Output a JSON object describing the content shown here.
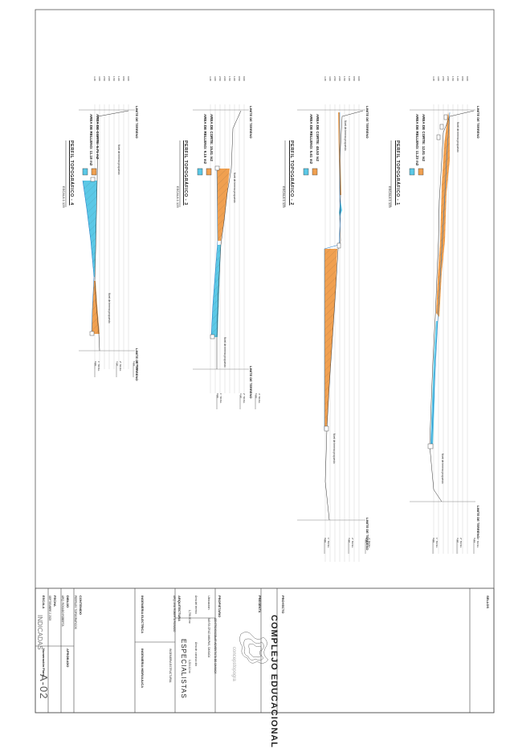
{
  "profiles": [
    {
      "id": "profile-1",
      "title": "PERFIL TOPOGRÁFICO - 1",
      "scale": "ESCALA 1:125",
      "cut_area": "AREA DE CORTE: 12.81 m2",
      "fill_area": "AREA DE RELLENO: 11.23 m2",
      "boundary_start": "LIMITE DE TERRENO",
      "boundary_end": "LIMITE DE TERRENO",
      "grade_label_start": "Nivel de terreno propuesto",
      "grade_label_end": "Nivel de terreno propuesto",
      "elevations": [
        "3.48",
        "3.00",
        "2.50",
        "2.00",
        "1.50",
        "1.00",
        "0.50",
        "0.00"
      ],
      "level_labels": [
        "1° NIVEL\n0.00",
        "2° NIVEL\n3.12",
        "3° NIVEL\n6.24"
      ]
    },
    {
      "id": "profile-2",
      "title": "PERFIL TOPOGRÁFICO - 2",
      "scale": "ESCALA 1:125",
      "cut_area": "AREA DE CORTE: 48.53 m2",
      "fill_area": "AREA DE RELLENO: 5.61 m2",
      "boundary_start": "LIMITE DE TERRENO",
      "boundary_end": "LIMITE DE TERRENO",
      "grade_label_start": "Nivel de terreno propuesto",
      "grade_label_end": "Nivel de terreno propuesto",
      "elevations": [
        "3.48",
        "3.00",
        "2.50",
        "2.00",
        "1.50",
        "1.00",
        "0.50",
        "0.00"
      ],
      "level_labels": [
        "1° NIVEL\n0.00",
        "2° NIVEL\n3.12",
        "3° NIVEL\n6.24"
      ]
    },
    {
      "id": "profile-3",
      "title": "PERFIL TOPOGRÁFICO - 3",
      "scale": "ESCALA 1:125",
      "cut_area": "AREA DE CORTE: 15.81 m2",
      "fill_area": "AREA DE RELLENO: 9.15 m2",
      "boundary_start": "LIMITE DE TERRENO",
      "boundary_end": "LIMITE DE TERRENO",
      "grade_label_start": "Nivel de terreno propuesto",
      "grade_label_end": "Nivel de terreno propuesto",
      "elevations": [
        "3.48",
        "3.00",
        "2.50",
        "2.00",
        "1.50",
        "1.00",
        "0.50",
        "0.00"
      ],
      "level_labels": [
        "1° NIVEL\n0.00",
        "2° NIVEL\n3.12",
        "3° NIVEL\n6.24"
      ]
    },
    {
      "id": "profile-4",
      "title": "PERFIL TOPOGRÁFICO - 4",
      "scale": "ESCALA 1:125",
      "cut_area": "AREA DE CORTE: 5.71 m2",
      "fill_area": "AREA DE RELLENO: 11.18 m2",
      "boundary_start": "LIMITE DE TERRENO",
      "boundary_end": "LIMITE DE TERRENO",
      "grade_label_start": "Nivel de terreno propuesto",
      "grade_label_end": "Nivel de terreno propuesto",
      "elevations": [
        "3.48",
        "3.00",
        "2.50",
        "2.00",
        "1.50",
        "1.00",
        "0.50",
        "0.00"
      ],
      "level_labels": [
        "1° NIVEL\n0.00",
        "2° NIVEL\n3.12",
        "3° NIVEL\n6.24"
      ]
    }
  ],
  "colors": {
    "cut": "#5bc8e6",
    "fill": "#f0a050",
    "border": "#444444"
  },
  "title_block": {
    "stamp_label": "SELLOS",
    "project_label": "PROYECTO",
    "project_name": "COMPLEJO EDUCACIONAL",
    "presenter_label": "PRESENTA",
    "brand_text": "concepstopogra",
    "owner_label": "PROPIETARIO",
    "owner_value": "CENTRO ESCOLAR ADVENTISTA DE OAXACA",
    "location_label": "Ubicación",
    "location_value": "SANTA CRUZ AMILPAS, OAXACA",
    "area_label": "Área del terreno",
    "area_value": "1,798.00 m²",
    "built_area_label": "Área de construcción",
    "built_area_value": "1,524.12 m²",
    "architecture_label": "ARQUITECTURA",
    "architecture_value": "ARQ. ANA ROBERTA ROSADO",
    "specialists_title": "ESPECIALISTAS",
    "structural_label": "INGENIERIA ESTRUCTURAL",
    "electrical_label": "INGENIERIA ELECTRICA",
    "hydraulic_label": "INGENIERIA HIDRAULICA",
    "content_label": "CONTENIDO",
    "content_value": "PERFILES TOPOGRAFICOS",
    "drawing_label": "DIBUJO",
    "drawing_value": "ARQ. ROSADO ROBERTA",
    "approved_label": "APROBADO",
    "date_label": "FECHA",
    "date_value": "SEPTIEMBRE 2 2023",
    "scale_label": "ESCALA",
    "scale_value": "INDICADAS",
    "sheet_label": "Numeración Plano",
    "sheet_number": "A-02"
  }
}
